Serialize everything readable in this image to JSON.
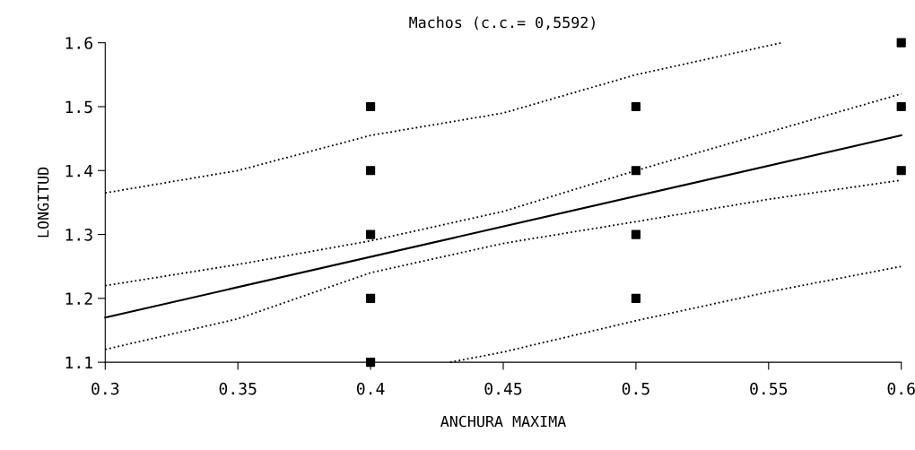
{
  "chart_data": {
    "type": "scatter",
    "title": "Machos (c.c.= 0,5592)",
    "xlabel": "ANCHURA MAXIMA",
    "ylabel": "LONGITUD",
    "xlim": [
      0.3,
      0.6
    ],
    "xticks": [
      0.3,
      0.35,
      0.4,
      0.45,
      0.5,
      0.55,
      0.6
    ],
    "ylim": [
      1.1,
      1.6
    ],
    "yticks": [
      1.1,
      1.2,
      1.3,
      1.4,
      1.5,
      1.6
    ],
    "grid": false,
    "legend": false,
    "series": [
      {
        "color": "#000000",
        "marker": "square",
        "x": [
          0.4,
          0.4,
          0.4,
          0.4,
          0.4,
          0.5,
          0.5,
          0.5,
          0.5,
          0.6,
          0.6,
          0.6
        ],
        "values": [
          1.5,
          1.4,
          1.3,
          1.2,
          1.1,
          1.5,
          1.4,
          1.3,
          1.2,
          1.6,
          1.5,
          1.4
        ]
      },
      {
        "type": "line",
        "color": "#000000",
        "line_style": "solid",
        "x": [
          0.3,
          0.6
        ],
        "values": [
          1.17,
          1.455
        ]
      },
      {
        "type": "line",
        "color": "#000000",
        "line_style": "dotted",
        "x": [
          0.3,
          0.35,
          0.4,
          0.45,
          0.5,
          0.55,
          0.6
        ],
        "values": [
          1.22,
          1.253,
          1.29,
          1.336,
          1.4,
          1.46,
          1.52
        ]
      },
      {
        "type": "line",
        "color": "#000000",
        "line_style": "dotted",
        "x": [
          0.3,
          0.35,
          0.4,
          0.45,
          0.5,
          0.55,
          0.6
        ],
        "values": [
          1.12,
          1.168,
          1.24,
          1.286,
          1.32,
          1.355,
          1.385
        ]
      },
      {
        "type": "line",
        "color": "#000000",
        "line_style": "dotted",
        "x": [
          0.3,
          0.35,
          0.4,
          0.45,
          0.5,
          0.555
        ],
        "values": [
          1.365,
          1.4,
          1.455,
          1.49,
          1.55,
          1.6
        ]
      },
      {
        "type": "line",
        "color": "#000000",
        "line_style": "dotted",
        "x": [
          0.43,
          0.45,
          0.5,
          0.55,
          0.6
        ],
        "values": [
          1.1,
          1.116,
          1.165,
          1.21,
          1.25
        ]
      }
    ]
  }
}
